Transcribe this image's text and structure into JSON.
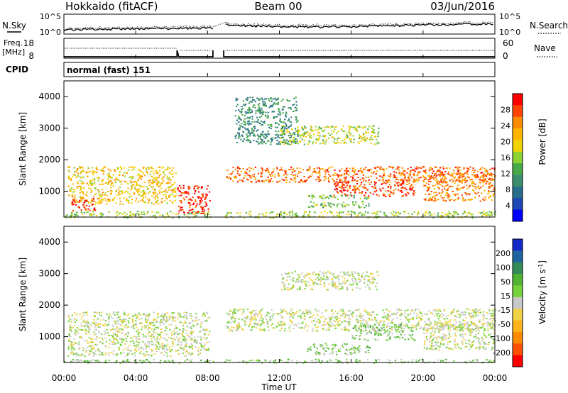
{
  "header": {
    "title_left": "Hokkaido (fitACF)",
    "title_center": "Beam 00",
    "title_right": "03/Jun/2016"
  },
  "noise_panel": {
    "left_label": "N.Sky",
    "left_ticks": [
      "10^5",
      "10^0"
    ],
    "right_label": "N.Search",
    "right_ticks": [
      "10^5",
      "10^0"
    ]
  },
  "freq_panel": {
    "left_label_line1": "Freq.",
    "left_label_line2": "[MHz]",
    "left_ticks": [
      "18",
      "8"
    ],
    "right_label": "Nave",
    "right_ticks": [
      "60",
      "0"
    ]
  },
  "cpid_panel": {
    "label": "CPID",
    "text": "normal (fast) 151"
  },
  "x_axis": {
    "label": "Time UT",
    "ticks": [
      "00:00",
      "04:00",
      "08:00",
      "12:00",
      "16:00",
      "20:00",
      "00:00"
    ]
  },
  "chart_data": [
    {
      "type": "heatmap",
      "name": "power",
      "ylabel": "Slant Range [km]",
      "yticks": [
        1000,
        2000,
        3000,
        4000
      ],
      "ylim": [
        180,
        4500
      ],
      "xlim_hours": [
        0,
        24
      ],
      "colorbar_label": "Power [dB]",
      "colorbar_ticks": [
        "28",
        "24",
        "20",
        "16",
        "12",
        "8",
        "4"
      ],
      "colorbar_colors": [
        "#ff0000",
        "#ff4400",
        "#ff8c00",
        "#ffb400",
        "#f0d200",
        "#8cd232",
        "#46aa46",
        "#3c8c6e",
        "#286e8c",
        "#1e46b4",
        "#0000ff"
      ],
      "data_gap_hours": [
        8.3,
        8.9
      ],
      "regions": [
        {
          "t0": 0.2,
          "t1": 6.2,
          "r0": 600,
          "r1": 1800,
          "level": 0.65
        },
        {
          "t0": 0.4,
          "t1": 1.8,
          "r0": 400,
          "r1": 800,
          "level": 0.95
        },
        {
          "t0": 6.3,
          "t1": 8.1,
          "r0": 300,
          "r1": 1200,
          "level": 0.98
        },
        {
          "t0": 9.0,
          "t1": 24.0,
          "r0": 1300,
          "r1": 1800,
          "level": 0.85
        },
        {
          "t0": 12.0,
          "t1": 17.5,
          "r0": 2500,
          "r1": 3100,
          "level": 0.55
        },
        {
          "t0": 15.0,
          "t1": 19.5,
          "r0": 850,
          "r1": 1400,
          "level": 0.92
        },
        {
          "t0": 20.0,
          "t1": 24.0,
          "r0": 700,
          "r1": 1600,
          "level": 0.8
        },
        {
          "t0": 13.5,
          "t1": 17.0,
          "r0": 500,
          "r1": 700,
          "level": 0.45
        },
        {
          "t0": 13.5,
          "t1": 17.0,
          "r0": 750,
          "r1": 900,
          "level": 0.45
        },
        {
          "t0": 9.5,
          "t1": 13.0,
          "r0": 2500,
          "r1": 4000,
          "level": 0.3
        },
        {
          "t0": 0.0,
          "t1": 24.0,
          "r0": 180,
          "r1": 380,
          "level": 0.5
        }
      ]
    },
    {
      "type": "heatmap",
      "name": "velocity",
      "ylabel": "Slant Range [km]",
      "yticks": [
        1000,
        2000,
        3000,
        4000
      ],
      "ylim": [
        180,
        4500
      ],
      "xlim_hours": [
        0,
        24
      ],
      "colorbar_label": "Velocity [m s^-1]",
      "colorbar_ticks": [
        "200",
        "100",
        "50",
        "15",
        "-15",
        "-50",
        "-100",
        "-200"
      ],
      "colorbar_colors": [
        "#1428c8",
        "#1e64a0",
        "#328c5a",
        "#50b432",
        "#78d23c",
        "#c8c8c8",
        "#f0d246",
        "#ffb41e",
        "#ff8c00",
        "#ff5000",
        "#ff0000"
      ],
      "data_gap_hours": [
        8.3,
        8.9
      ],
      "regions": [
        {
          "t0": 0.2,
          "t1": 8.1,
          "r0": 400,
          "r1": 1800,
          "level": 0.5
        },
        {
          "t0": 9.0,
          "t1": 24.0,
          "r0": 1200,
          "r1": 1900,
          "level": 0.5
        },
        {
          "t0": 12.0,
          "t1": 17.5,
          "r0": 2500,
          "r1": 3100,
          "level": 0.5
        },
        {
          "t0": 16.0,
          "t1": 19.5,
          "r0": 900,
          "r1": 1400,
          "level": 0.62
        },
        {
          "t0": 13.5,
          "t1": 17.0,
          "r0": 450,
          "r1": 800,
          "level": 0.6
        },
        {
          "t0": 20.0,
          "t1": 24.0,
          "r0": 600,
          "r1": 1500,
          "level": 0.5
        },
        {
          "t0": 0.0,
          "t1": 24.0,
          "r0": 180,
          "r1": 300,
          "level": 0.6
        }
      ]
    }
  ]
}
